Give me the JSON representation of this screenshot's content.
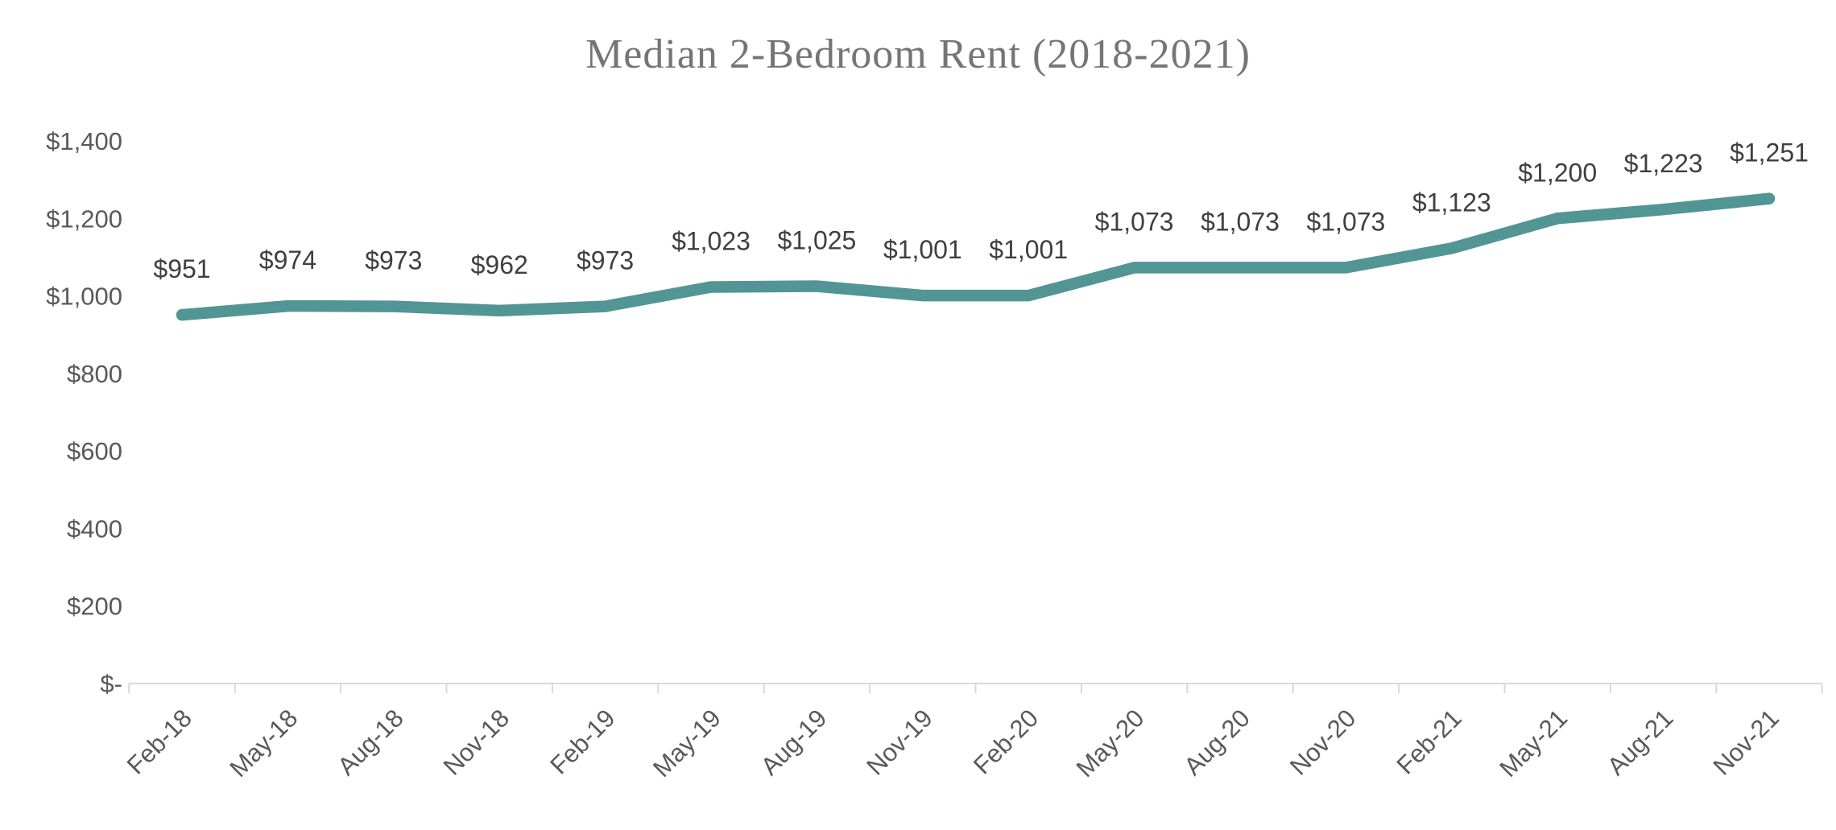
{
  "title": "Median 2-Bedroom Rent (2018-2021)",
  "chart_data": {
    "type": "line",
    "title": "Median 2-Bedroom Rent (2018-2021)",
    "categories": [
      "Feb-18",
      "May-18",
      "Aug-18",
      "Nov-18",
      "Feb-19",
      "May-19",
      "Aug-19",
      "Nov-19",
      "Feb-20",
      "May-20",
      "Aug-20",
      "Nov-20",
      "Feb-21",
      "May-21",
      "Aug-21",
      "Nov-21"
    ],
    "values": [
      951,
      974,
      973,
      962,
      973,
      1023,
      1025,
      1001,
      1001,
      1073,
      1073,
      1073,
      1123,
      1200,
      1223,
      1251
    ],
    "data_labels": [
      "$951",
      "$974",
      "$973",
      "$962",
      "$973",
      "$1,023",
      "$1,025",
      "$1,001",
      "$1,001",
      "$1,073",
      "$1,073",
      "$1,073",
      "$1,123",
      "$1,200",
      "$1,223",
      "$1,251"
    ],
    "y_axis": {
      "min": 0,
      "max": 1400,
      "step": 200,
      "tick_labels": [
        "$-",
        "$200",
        "$400",
        "$600",
        "$800",
        "$1,000",
        "$1,200",
        "$1,400"
      ]
    },
    "xlabel": "",
    "ylabel": "",
    "grid": false,
    "legend": "none",
    "colors": {
      "line": "#529595",
      "data_label": "#3f3f3f",
      "axis_text": "#595959",
      "axis_line": "#d9d9d9",
      "title": "#757575"
    }
  }
}
